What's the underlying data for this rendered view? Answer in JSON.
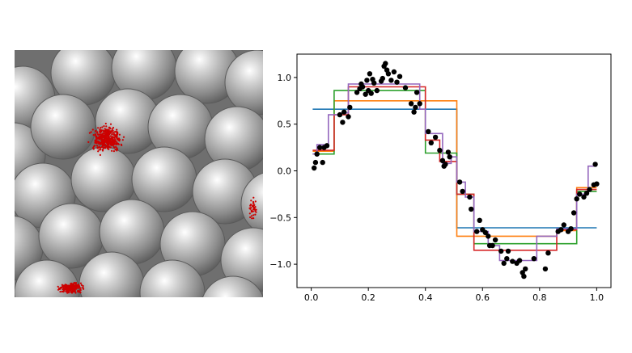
{
  "sphere_image": {
    "sphere_color": "#9a9a9a",
    "particle_color": "#cc0000"
  },
  "chart_data": {
    "type": "scatter",
    "xlim": [
      -0.05,
      1.05
    ],
    "ylim": [
      -1.25,
      1.25
    ],
    "x_ticks": [
      "0.0",
      "0.2",
      "0.4",
      "0.6",
      "0.8",
      "1.0"
    ],
    "x_tick_values": [
      0,
      0.2,
      0.4,
      0.6,
      0.8,
      1.0
    ],
    "y_ticks": [
      "1.0",
      "0.5",
      "0.0",
      "−0.5",
      "−1.0"
    ],
    "y_tick_values": [
      1.0,
      0.5,
      0.0,
      -0.5,
      -1.0
    ],
    "grid": false,
    "scatter": {
      "color": "#000000",
      "points": [
        [
          0.01,
          0.03
        ],
        [
          0.015,
          0.09
        ],
        [
          0.02,
          0.18
        ],
        [
          0.03,
          0.25
        ],
        [
          0.04,
          0.09
        ],
        [
          0.045,
          0.25
        ],
        [
          0.055,
          0.27
        ],
        [
          0.1,
          0.6
        ],
        [
          0.11,
          0.52
        ],
        [
          0.115,
          0.63
        ],
        [
          0.13,
          0.58
        ],
        [
          0.135,
          0.68
        ],
        [
          0.16,
          0.84
        ],
        [
          0.17,
          0.88
        ],
        [
          0.175,
          0.93
        ],
        [
          0.18,
          0.9
        ],
        [
          0.19,
          0.82
        ],
        [
          0.195,
          0.97
        ],
        [
          0.2,
          0.86
        ],
        [
          0.205,
          1.04
        ],
        [
          0.21,
          0.83
        ],
        [
          0.215,
          0.98
        ],
        [
          0.22,
          0.94
        ],
        [
          0.23,
          0.86
        ],
        [
          0.245,
          0.96
        ],
        [
          0.25,
          0.99
        ],
        [
          0.255,
          1.12
        ],
        [
          0.26,
          1.15
        ],
        [
          0.265,
          1.08
        ],
        [
          0.27,
          1.04
        ],
        [
          0.28,
          0.97
        ],
        [
          0.29,
          1.06
        ],
        [
          0.3,
          0.95
        ],
        [
          0.31,
          1.01
        ],
        [
          0.33,
          0.89
        ],
        [
          0.35,
          0.72
        ],
        [
          0.36,
          0.63
        ],
        [
          0.365,
          0.68
        ],
        [
          0.37,
          0.84
        ],
        [
          0.38,
          0.72
        ],
        [
          0.41,
          0.42
        ],
        [
          0.42,
          0.3
        ],
        [
          0.435,
          0.36
        ],
        [
          0.45,
          0.22
        ],
        [
          0.46,
          0.11
        ],
        [
          0.465,
          0.05
        ],
        [
          0.47,
          0.07
        ],
        [
          0.48,
          0.2
        ],
        [
          0.485,
          0.15
        ],
        [
          0.52,
          -0.12
        ],
        [
          0.53,
          -0.22
        ],
        [
          0.555,
          -0.28
        ],
        [
          0.56,
          -0.41
        ],
        [
          0.58,
          -0.65
        ],
        [
          0.59,
          -0.53
        ],
        [
          0.6,
          -0.63
        ],
        [
          0.61,
          -0.66
        ],
        [
          0.62,
          -0.7
        ],
        [
          0.625,
          -0.8
        ],
        [
          0.635,
          -0.8
        ],
        [
          0.645,
          -0.74
        ],
        [
          0.665,
          -0.86
        ],
        [
          0.675,
          -0.99
        ],
        [
          0.685,
          -0.94
        ],
        [
          0.69,
          -0.86
        ],
        [
          0.705,
          -0.97
        ],
        [
          0.72,
          -0.99
        ],
        [
          0.73,
          -0.96
        ],
        [
          0.74,
          -1.09
        ],
        [
          0.745,
          -1.13
        ],
        [
          0.75,
          -1.05
        ],
        [
          0.78,
          -0.94
        ],
        [
          0.82,
          -1.05
        ],
        [
          0.83,
          -0.88
        ],
        [
          0.865,
          -0.65
        ],
        [
          0.875,
          -0.63
        ],
        [
          0.885,
          -0.58
        ],
        [
          0.9,
          -0.65
        ],
        [
          0.91,
          -0.62
        ],
        [
          0.92,
          -0.45
        ],
        [
          0.93,
          -0.3
        ],
        [
          0.94,
          -0.25
        ],
        [
          0.955,
          -0.28
        ],
        [
          0.965,
          -0.24
        ],
        [
          0.975,
          -0.2
        ],
        [
          0.99,
          -0.15
        ],
        [
          0.995,
          0.07
        ],
        [
          1.0,
          -0.14
        ]
      ]
    },
    "series": [
      {
        "color": "#1f77b4",
        "x": [
          0.005,
          0.51,
          0.51,
          1.0
        ],
        "y": [
          0.66,
          0.66,
          -0.61,
          -0.61
        ]
      },
      {
        "color": "#ff7f0e",
        "x": [
          0.005,
          0.08,
          0.08,
          0.51,
          0.51,
          0.86,
          0.86,
          0.93,
          0.93,
          1.0
        ],
        "y": [
          0.21,
          0.21,
          0.75,
          0.75,
          -0.7,
          -0.7,
          -0.64,
          -0.64,
          -0.18,
          -0.18
        ]
      },
      {
        "color": "#2ca02c",
        "x": [
          0.005,
          0.08,
          0.08,
          0.4,
          0.4,
          0.51,
          0.51,
          0.57,
          0.57,
          0.93,
          0.93,
          1.0
        ],
        "y": [
          0.18,
          0.18,
          0.86,
          0.86,
          0.19,
          0.19,
          -0.25,
          -0.25,
          -0.78,
          -0.78,
          -0.22,
          -0.22
        ]
      },
      {
        "color": "#d62728",
        "x": [
          0.005,
          0.08,
          0.08,
          0.13,
          0.13,
          0.4,
          0.4,
          0.45,
          0.45,
          0.51,
          0.51,
          0.57,
          0.57,
          0.86,
          0.86,
          0.93,
          0.93,
          1.0
        ],
        "y": [
          0.22,
          0.22,
          0.6,
          0.6,
          0.9,
          0.9,
          0.33,
          0.33,
          0.1,
          0.1,
          -0.25,
          -0.25,
          -0.85,
          -0.85,
          -0.63,
          -0.63,
          -0.2,
          -0.2
        ]
      },
      {
        "color": "#9467bd",
        "x": [
          0.005,
          0.02,
          0.02,
          0.06,
          0.06,
          0.1,
          0.1,
          0.13,
          0.13,
          0.38,
          0.38,
          0.4,
          0.4,
          0.46,
          0.46,
          0.49,
          0.49,
          0.51,
          0.51,
          0.54,
          0.54,
          0.57,
          0.57,
          0.62,
          0.62,
          0.66,
          0.66,
          0.79,
          0.79,
          0.86,
          0.86,
          0.93,
          0.93,
          0.97,
          0.97,
          1.0
        ],
        "y": [
          0.18,
          0.18,
          0.28,
          0.28,
          0.6,
          0.6,
          0.62,
          0.62,
          0.93,
          0.93,
          0.66,
          0.66,
          0.4,
          0.4,
          0.08,
          0.08,
          0.15,
          0.15,
          -0.12,
          -0.12,
          -0.28,
          -0.28,
          -0.65,
          -0.65,
          -0.8,
          -0.8,
          -0.96,
          -0.96,
          -0.7,
          -0.7,
          -0.62,
          -0.62,
          -0.25,
          -0.25,
          0.05,
          0.05
        ]
      }
    ]
  }
}
